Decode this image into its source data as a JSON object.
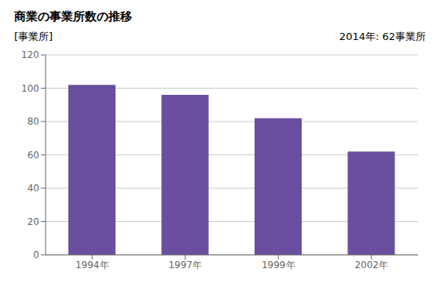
{
  "chart_data": {
    "type": "bar",
    "title": "商業の事業所数の推移",
    "ylabel": "[事業所]",
    "annotation": "2014年: 62事業所",
    "categories": [
      "1994年",
      "1997年",
      "1999年",
      "2002年"
    ],
    "values": [
      102,
      96,
      82,
      62
    ],
    "color": "#6a4fa0",
    "ylim": [
      0,
      120
    ],
    "yticks": [
      0,
      20,
      40,
      60,
      80,
      100,
      120
    ],
    "grid": true
  }
}
